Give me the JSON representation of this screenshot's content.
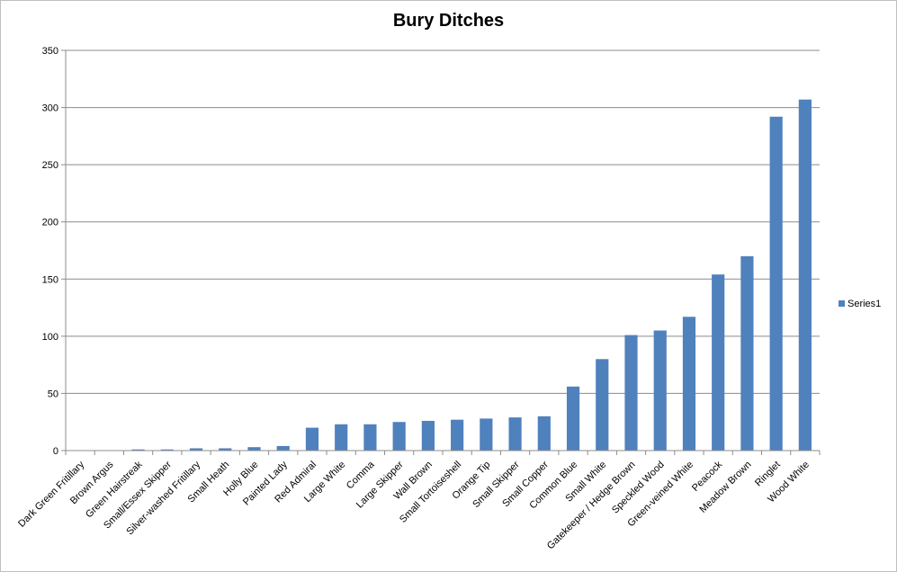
{
  "chart_data": {
    "type": "bar",
    "title": "Bury Ditches",
    "xlabel": "",
    "ylabel": "",
    "ylim": [
      0,
      350
    ],
    "yticks": [
      0,
      50,
      100,
      150,
      200,
      250,
      300,
      350
    ],
    "grid": true,
    "legend": "right",
    "categories": [
      "Dark Green Fritillary",
      "Brown Argus",
      "Green Hairstreak",
      "Small/Essex Skipper",
      "Silver-washed Fritillary",
      "Small Heath",
      "Holly Blue",
      "Painted Lady",
      "Red Admiral",
      "Large White",
      "Comma",
      "Large Skipper",
      "Wall Brown",
      "Small Tortoiseshell",
      "Orange Tip",
      "Small Skipper",
      "Small Copper",
      "Common Blue",
      "Small White",
      "Gatekeeper / Hedge Brown",
      "Speckled Wood",
      "Green-veined White",
      "Peacock",
      "Meadow Brown",
      "Ringlet",
      "Wood White"
    ],
    "series": [
      {
        "name": "Series1",
        "color": "#4f81bd",
        "values": [
          0,
          0,
          1,
          1,
          2,
          2,
          3,
          4,
          20,
          23,
          23,
          25,
          26,
          27,
          28,
          29,
          30,
          56,
          80,
          101,
          105,
          117,
          154,
          170,
          292,
          307
        ]
      }
    ]
  }
}
